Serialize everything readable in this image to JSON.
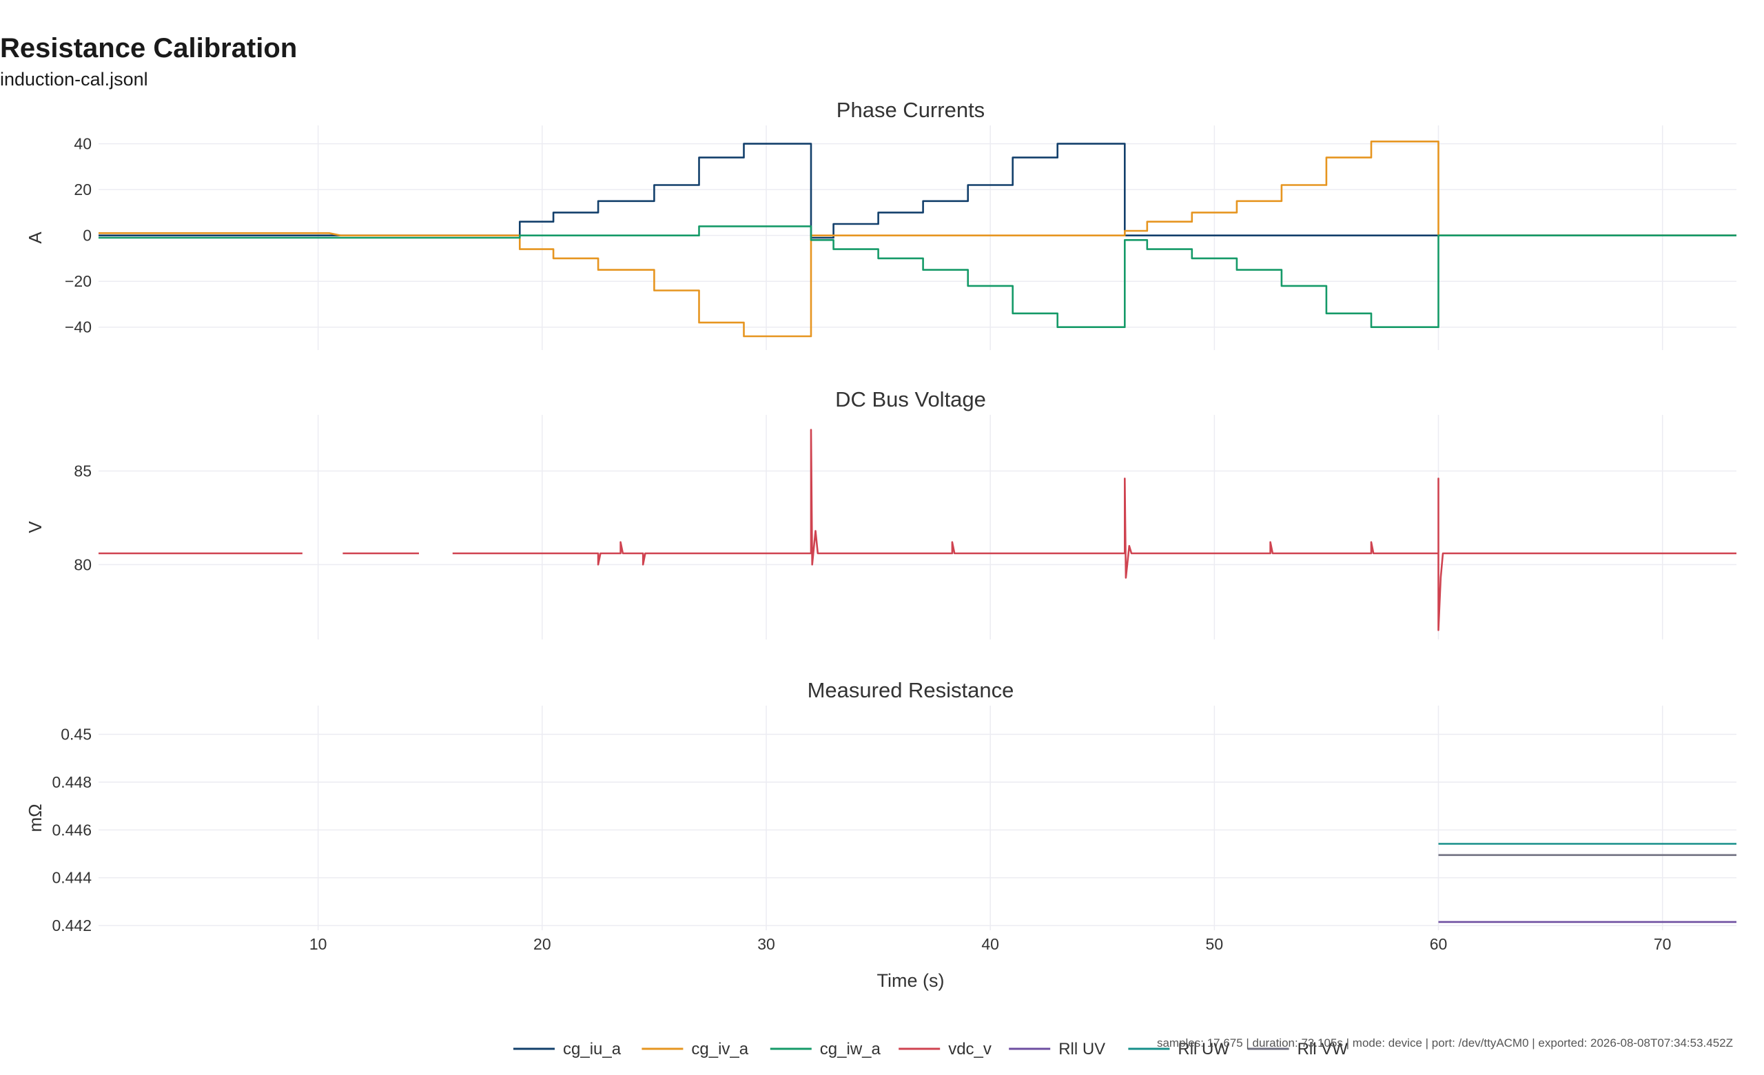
{
  "header": {
    "title": "Resistance Calibration",
    "subtitle": "induction-cal.jsonl"
  },
  "footer": {
    "info": "samples: 17,675 | duration: 73.105s | mode: device | port: /dev/ttyACM0 | exported: 2026-08-08T07:34:53.452Z"
  },
  "chart_data": [
    {
      "type": "line",
      "title": "Phase Currents",
      "ylabel": "A",
      "xlabel": "",
      "xlim": [
        0.2,
        73.3
      ],
      "ylim": [
        -50,
        48
      ],
      "yticks": [
        40,
        20,
        0,
        -20,
        -40
      ],
      "grid": true,
      "series": [
        {
          "name": "cg_iu_a",
          "color": "#123f6b",
          "points": [
            [
              0.2,
              0
            ],
            [
              19,
              0
            ],
            [
              19,
              6
            ],
            [
              20.5,
              6
            ],
            [
              20.5,
              10
            ],
            [
              22.5,
              10
            ],
            [
              22.5,
              15
            ],
            [
              25,
              15
            ],
            [
              25,
              22
            ],
            [
              27,
              22
            ],
            [
              27,
              34
            ],
            [
              29,
              34
            ],
            [
              29,
              40
            ],
            [
              32,
              40
            ],
            [
              32,
              -1
            ],
            [
              33,
              -1
            ],
            [
              33,
              5
            ],
            [
              35,
              5
            ],
            [
              35,
              10
            ],
            [
              37,
              10
            ],
            [
              37,
              15
            ],
            [
              39,
              15
            ],
            [
              39,
              22
            ],
            [
              41,
              22
            ],
            [
              41,
              34
            ],
            [
              43,
              34
            ],
            [
              43,
              40
            ],
            [
              46,
              40
            ],
            [
              46,
              0
            ],
            [
              73.3,
              0
            ]
          ]
        },
        {
          "name": "cg_iv_a",
          "color": "#e69520",
          "points": [
            [
              0.2,
              1
            ],
            [
              10.5,
              1
            ],
            [
              11,
              0
            ],
            [
              19,
              0
            ],
            [
              19,
              -6
            ],
            [
              20.5,
              -6
            ],
            [
              20.5,
              -10
            ],
            [
              22.5,
              -10
            ],
            [
              22.5,
              -15
            ],
            [
              25,
              -15
            ],
            [
              25,
              -24
            ],
            [
              27,
              -24
            ],
            [
              27,
              -38
            ],
            [
              29,
              -38
            ],
            [
              29,
              -44
            ],
            [
              32,
              -44
            ],
            [
              32,
              0
            ],
            [
              46,
              0
            ],
            [
              46,
              2
            ],
            [
              47,
              2
            ],
            [
              47,
              6
            ],
            [
              49,
              6
            ],
            [
              49,
              10
            ],
            [
              51,
              10
            ],
            [
              51,
              15
            ],
            [
              53,
              15
            ],
            [
              53,
              22
            ],
            [
              55,
              22
            ],
            [
              55,
              34
            ],
            [
              57,
              34
            ],
            [
              57,
              41
            ],
            [
              60,
              41
            ],
            [
              60,
              0
            ],
            [
              73.3,
              0
            ]
          ]
        },
        {
          "name": "cg_iw_a",
          "color": "#159a68",
          "points": [
            [
              0.2,
              -1
            ],
            [
              19,
              -1
            ],
            [
              19,
              0
            ],
            [
              27,
              0
            ],
            [
              27,
              4
            ],
            [
              32,
              4
            ],
            [
              32,
              -2
            ],
            [
              33,
              -2
            ],
            [
              33,
              -6
            ],
            [
              35,
              -6
            ],
            [
              35,
              -10
            ],
            [
              37,
              -10
            ],
            [
              37,
              -15
            ],
            [
              39,
              -15
            ],
            [
              39,
              -22
            ],
            [
              41,
              -22
            ],
            [
              41,
              -34
            ],
            [
              43,
              -34
            ],
            [
              43,
              -40
            ],
            [
              46,
              -40
            ],
            [
              46,
              -2
            ],
            [
              47,
              -2
            ],
            [
              47,
              -6
            ],
            [
              49,
              -6
            ],
            [
              49,
              -10
            ],
            [
              51,
              -10
            ],
            [
              51,
              -15
            ],
            [
              53,
              -15
            ],
            [
              53,
              -22
            ],
            [
              55,
              -22
            ],
            [
              55,
              -34
            ],
            [
              57,
              -34
            ],
            [
              57,
              -40
            ],
            [
              60,
              -40
            ],
            [
              60,
              0
            ],
            [
              73.3,
              0
            ]
          ]
        }
      ]
    },
    {
      "type": "line",
      "title": "DC Bus Voltage",
      "ylabel": "V",
      "xlabel": "",
      "xlim": [
        0.2,
        73.3
      ],
      "ylim": [
        76,
        88
      ],
      "yticks": [
        85,
        80
      ],
      "grid": true,
      "series": [
        {
          "name": "vdc_v",
          "color": "#cf4350",
          "points": [
            [
              0.2,
              80.6
            ],
            [
              9.3,
              80.6
            ],
            [
              9.3,
              null
            ],
            [
              11.1,
              80.6
            ],
            [
              14.5,
              80.6
            ],
            [
              14.5,
              null
            ],
            [
              16,
              80.6
            ],
            [
              22.5,
              80.6
            ],
            [
              22.5,
              80
            ],
            [
              22.6,
              80.6
            ],
            [
              23.5,
              80.6
            ],
            [
              23.5,
              81.2
            ],
            [
              23.6,
              80.6
            ],
            [
              24.5,
              80.6
            ],
            [
              24.5,
              80
            ],
            [
              24.6,
              80.6
            ],
            [
              32,
              80.6
            ],
            [
              32,
              87.2
            ],
            [
              32.05,
              80
            ],
            [
              32.2,
              81.8
            ],
            [
              32.3,
              80.6
            ],
            [
              37.5,
              80.6
            ],
            [
              38.3,
              80.6
            ],
            [
              38.3,
              81.2
            ],
            [
              38.4,
              80.6
            ],
            [
              46,
              80.6
            ],
            [
              46,
              84.6
            ],
            [
              46.05,
              79.3
            ],
            [
              46.2,
              81
            ],
            [
              46.3,
              80.6
            ],
            [
              52.5,
              80.6
            ],
            [
              52.5,
              81.2
            ],
            [
              52.6,
              80.6
            ],
            [
              57,
              80.6
            ],
            [
              57,
              81.2
            ],
            [
              57.1,
              80.6
            ],
            [
              60,
              80.6
            ],
            [
              60,
              84.6
            ],
            [
              60,
              76.5
            ],
            [
              60.1,
              79.3
            ],
            [
              60.2,
              80.6
            ],
            [
              73.3,
              80.6
            ]
          ]
        }
      ]
    },
    {
      "type": "line",
      "title": "Measured Resistance",
      "ylabel": "mΩ",
      "xlabel": "Time (s)",
      "xlim": [
        0.2,
        73.3
      ],
      "ylim": [
        0.4418,
        0.4512
      ],
      "yticks": [
        0.45,
        0.448,
        0.446,
        0.444,
        0.442
      ],
      "xticks": [
        10,
        20,
        30,
        40,
        50,
        60,
        70
      ],
      "grid": true,
      "series": [
        {
          "name": "Rll UV",
          "color": "#6d4ea0",
          "points": [
            [
              60,
              0.44215
            ],
            [
              73.3,
              0.44215
            ]
          ]
        },
        {
          "name": "Rll UW",
          "color": "#168f8a",
          "points": [
            [
              60,
              0.44542
            ],
            [
              73.3,
              0.44542
            ]
          ]
        },
        {
          "name": "Rll VW",
          "color": "#6f6f7f",
          "points": [
            [
              60,
              0.44495
            ],
            [
              73.3,
              0.44495
            ]
          ]
        }
      ]
    }
  ],
  "legend": [
    {
      "label": "cg_iu_a",
      "color": "#123f6b"
    },
    {
      "label": "cg_iv_a",
      "color": "#e69520"
    },
    {
      "label": "cg_iw_a",
      "color": "#159a68"
    },
    {
      "label": "vdc_v",
      "color": "#cf4350"
    },
    {
      "label": "Rll UV",
      "color": "#6d4ea0"
    },
    {
      "label": "Rll UW",
      "color": "#168f8a"
    },
    {
      "label": "Rll VW",
      "color": "#6f6f7f"
    }
  ]
}
